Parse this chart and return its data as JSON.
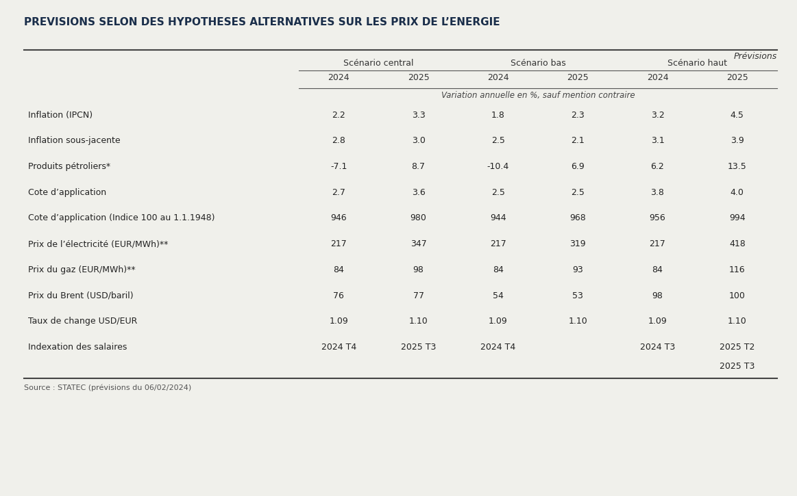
{
  "title": "PREVISIONS SELON DES HYPOTHESES ALTERNATIVES SUR LES PRIX DE L’ENERGIE",
  "source": "Source : STATEC (prévisions du 06/02/2024)",
  "bg_color": "#f0f0eb",
  "header_top": "Prévisions",
  "scenario_headers": [
    "Scénario central",
    "Scénario bas",
    "Scénario haut"
  ],
  "year_headers": [
    "2024",
    "2025",
    "2024",
    "2025",
    "2024",
    "2025"
  ],
  "note_row": "Variation annuelle en %, sauf mention contraire",
  "rows": [
    {
      "label": "Inflation (IPCN)",
      "values": [
        "2.2",
        "3.3",
        "1.8",
        "2.3",
        "3.2",
        "4.5"
      ],
      "extra_line": null
    },
    {
      "label": "Inflation sous-jacente",
      "values": [
        "2.8",
        "3.0",
        "2.5",
        "2.1",
        "3.1",
        "3.9"
      ],
      "extra_line": null
    },
    {
      "label": "Produits pétroliers*",
      "values": [
        "-7.1",
        "8.7",
        "-10.4",
        "6.9",
        "6.2",
        "13.5"
      ],
      "extra_line": null
    },
    {
      "label": "Cote d’application",
      "values": [
        "2.7",
        "3.6",
        "2.5",
        "2.5",
        "3.8",
        "4.0"
      ],
      "extra_line": null
    },
    {
      "label": "Cote d’application (Indice 100 au 1.1.1948)",
      "values": [
        "946",
        "980",
        "944",
        "968",
        "956",
        "994"
      ],
      "extra_line": null
    },
    {
      "label": "Prix de l’électricité (EUR/MWh)**",
      "values": [
        "217",
        "347",
        "217",
        "319",
        "217",
        "418"
      ],
      "extra_line": null
    },
    {
      "label": "Prix du gaz (EUR/MWh)**",
      "values": [
        "84",
        "98",
        "84",
        "93",
        "84",
        "116"
      ],
      "extra_line": null
    },
    {
      "label": "Prix du Brent (USD/baril)",
      "values": [
        "76",
        "77",
        "54",
        "53",
        "98",
        "100"
      ],
      "extra_line": null
    },
    {
      "label": "Taux de change USD/EUR",
      "values": [
        "1.09",
        "1.10",
        "1.09",
        "1.10",
        "1.09",
        "1.10"
      ],
      "extra_line": null
    },
    {
      "label": "Indexation des salaires",
      "values": [
        "2024 T4",
        "2025 T3",
        "2024 T4",
        "",
        "2024 T3",
        "2025 T2"
      ],
      "extra_line": [
        "",
        "",
        "",
        "",
        "",
        "2025 T3"
      ]
    }
  ]
}
